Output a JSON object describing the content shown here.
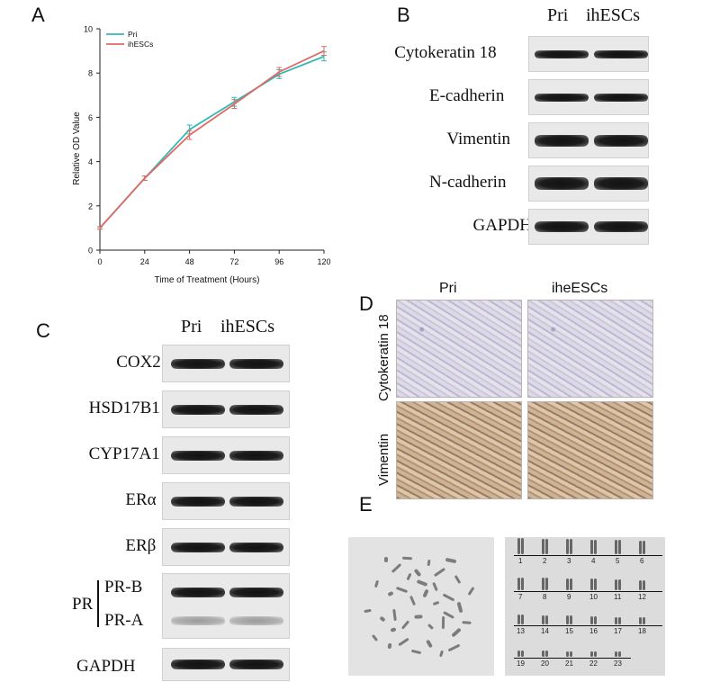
{
  "panels": {
    "A": "A",
    "B": "B",
    "C": "C",
    "D": "D",
    "E": "E"
  },
  "chart_data": {
    "type": "line",
    "x": [
      0,
      24,
      48,
      72,
      96,
      120
    ],
    "series": [
      {
        "name": "Pri",
        "color": "#31b9b6",
        "values": [
          1.0,
          3.25,
          5.45,
          6.7,
          7.95,
          8.75
        ],
        "err": [
          0.05,
          0.1,
          0.2,
          0.2,
          0.2,
          0.2
        ]
      },
      {
        "name": "ihESCs",
        "color": "#e06a66",
        "values": [
          1.0,
          3.25,
          5.2,
          6.6,
          8.05,
          9.0
        ],
        "err": [
          0.05,
          0.1,
          0.2,
          0.2,
          0.2,
          0.2
        ]
      }
    ],
    "xlabel": "Time of Treatment (Hours)",
    "ylabel": "Relative OD Value",
    "xticks": [
      "0",
      "24",
      "48",
      "72",
      "96",
      "120"
    ],
    "yticks": [
      "0",
      "2",
      "4",
      "6",
      "8",
      "10"
    ],
    "xlim": [
      0,
      120
    ],
    "ylim": [
      0,
      10
    ],
    "legend_position": "top-left"
  },
  "blotB": {
    "columns": [
      "Pri",
      "ihESCs"
    ],
    "rows": [
      "Cytokeratin 18",
      "E-cadherin",
      "Vimentin",
      "N-cadherin",
      "GAPDH"
    ]
  },
  "blotC": {
    "columns": [
      "Pri",
      "ihESCs"
    ],
    "rows": [
      "COX2",
      "HSD17B1",
      "CYP17A1",
      "ERα",
      "ERβ"
    ],
    "pr_label": "PR",
    "pr_sub": [
      "PR-B",
      "PR-A"
    ],
    "last": "GAPDH"
  },
  "ihc": {
    "columns": [
      "Pri",
      "iheESCs"
    ],
    "rows": [
      "Cytokeratin 18",
      "Vimentin"
    ]
  },
  "karyotype": {
    "numbers": [
      "1",
      "2",
      "3",
      "4",
      "5",
      "6",
      "7",
      "8",
      "9",
      "10",
      "11",
      "12",
      "13",
      "14",
      "15",
      "16",
      "17",
      "18",
      "19",
      "20",
      "21",
      "22",
      "23"
    ]
  }
}
